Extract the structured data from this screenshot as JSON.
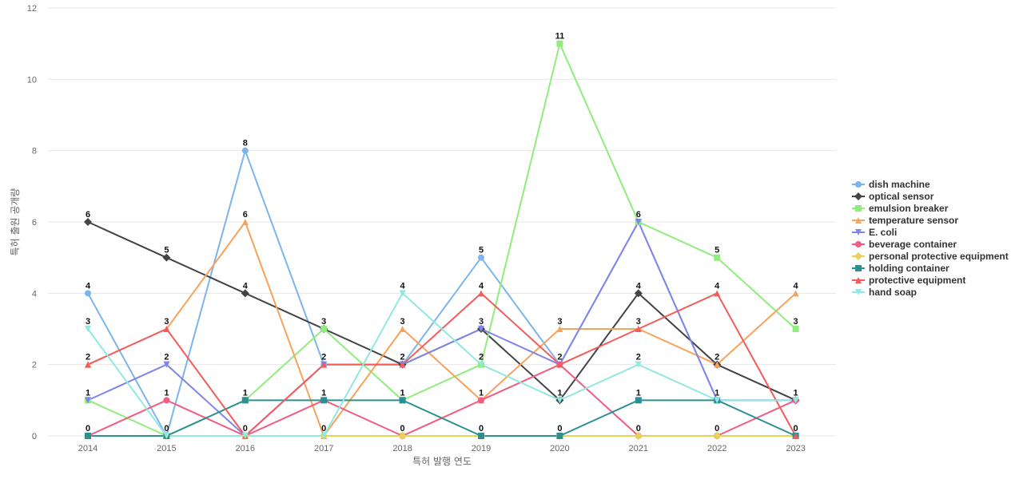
{
  "chart_data": {
    "type": "line",
    "title": "",
    "xlabel": "특허 발행 연도",
    "ylabel": "특허 출원 공개량",
    "ylim": [
      0,
      12
    ],
    "yticks": [
      0,
      2,
      4,
      6,
      8,
      10,
      12
    ],
    "x": [
      "2014",
      "2015",
      "2016",
      "2017",
      "2018",
      "2019",
      "2020",
      "2021",
      "2022",
      "2023"
    ],
    "legend_position": "right",
    "grid": true,
    "series": [
      {
        "name": "dish machine",
        "color": "#7cb5ec",
        "marker": "circle",
        "values": [
          4,
          0,
          8,
          2,
          2,
          5,
          2,
          6,
          1,
          1
        ]
      },
      {
        "name": "optical sensor",
        "color": "#434348",
        "marker": "diamond",
        "values": [
          6,
          5,
          4,
          3,
          2,
          3,
          1,
          4,
          2,
          1
        ]
      },
      {
        "name": "emulsion breaker",
        "color": "#90ed7d",
        "marker": "square",
        "values": [
          1,
          0,
          1,
          3,
          1,
          2,
          11,
          6,
          5,
          3
        ]
      },
      {
        "name": "temperature sensor",
        "color": "#f7a35c",
        "marker": "triangle",
        "values": [
          2,
          3,
          6,
          0,
          3,
          1,
          3,
          3,
          2,
          4
        ]
      },
      {
        "name": "E. coli",
        "color": "#8085e9",
        "marker": "triangle-down",
        "values": [
          1,
          2,
          0,
          2,
          2,
          3,
          2,
          6,
          1,
          1
        ]
      },
      {
        "name": "beverage container",
        "color": "#f15c80",
        "marker": "circle",
        "values": [
          0,
          1,
          0,
          1,
          0,
          1,
          2,
          0,
          0,
          1
        ]
      },
      {
        "name": "personal protective equipment",
        "color": "#e4d354",
        "marker": "diamond",
        "values": [
          0,
          0,
          0,
          0,
          0,
          0,
          0,
          0,
          0,
          0
        ]
      },
      {
        "name": "holding container",
        "color": "#2b908f",
        "marker": "square",
        "values": [
          0,
          0,
          1,
          1,
          1,
          0,
          0,
          1,
          1,
          0
        ]
      },
      {
        "name": "protective equipment",
        "color": "#f45b5b",
        "marker": "triangle",
        "values": [
          2,
          3,
          0,
          2,
          2,
          4,
          2,
          3,
          4,
          0
        ]
      },
      {
        "name": "hand soap",
        "color": "#91e8e1",
        "marker": "triangle-down",
        "values": [
          3,
          0,
          0,
          0,
          4,
          2,
          1,
          2,
          1,
          1
        ]
      }
    ],
    "point_labels": {
      "2014": [
        "6",
        "4",
        "3",
        "2",
        "1",
        "0"
      ],
      "2015": [
        "5",
        "3",
        "2",
        "1",
        "0"
      ],
      "2016": [
        "8",
        "6",
        "4",
        "1",
        "0"
      ],
      "2017": [
        "3",
        "2",
        "1",
        "0"
      ],
      "2018": [
        "4",
        "3",
        "2",
        "1",
        "0"
      ],
      "2019": [
        "5",
        "4",
        "3",
        "2",
        "1",
        "0"
      ],
      "2020": [
        "11",
        "3",
        "2",
        "1",
        "0"
      ],
      "2021": [
        "6",
        "4",
        "3",
        "2",
        "1",
        "0"
      ],
      "2022": [
        "5",
        "4",
        "2",
        "1",
        "0"
      ],
      "2023": [
        "4",
        "3",
        "1",
        "0"
      ]
    }
  }
}
